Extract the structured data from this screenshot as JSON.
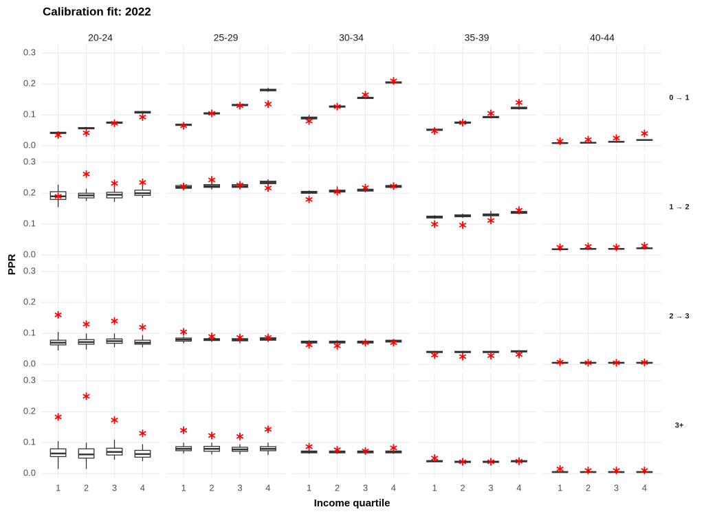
{
  "chart_data": {
    "type": "boxplot",
    "title": "Calibration fit: 2022",
    "xlabel": "Income quartile",
    "ylabel": "PPR",
    "categories": [
      "1",
      "2",
      "3",
      "4"
    ],
    "columns": [
      "20-24",
      "25-29",
      "30-34",
      "35-39",
      "40-44"
    ],
    "rows": [
      "0 → 1",
      "1 → 2",
      "2 → 3",
      "3+"
    ],
    "ylim": [
      -0.015,
      0.325
    ],
    "yticks": [
      {
        "value": 0,
        "label": "0.0"
      },
      0.1,
      0.2,
      0.3
    ],
    "grid": true,
    "box_color": "#333333",
    "box_fill": "#ffffff",
    "observed_color": "#ff0000",
    "panels": [
      [
        {
          "boxes": [
            [
              0.038,
              0.04,
              0.042,
              0.044,
              0.046
            ],
            [
              0.053,
              0.055,
              0.057,
              0.059,
              0.061
            ],
            [
              0.071,
              0.073,
              0.075,
              0.077,
              0.079
            ],
            [
              0.103,
              0.106,
              0.108,
              0.111,
              0.113
            ]
          ],
          "observed": [
            0.035,
            0.042,
            0.073,
            0.093
          ]
        },
        {
          "boxes": [
            [
              0.064,
              0.066,
              0.068,
              0.07,
              0.072
            ],
            [
              0.101,
              0.103,
              0.105,
              0.107,
              0.109
            ],
            [
              0.128,
              0.13,
              0.132,
              0.134,
              0.136
            ],
            [
              0.175,
              0.178,
              0.18,
              0.183,
              0.188
            ]
          ],
          "observed": [
            0.065,
            0.105,
            0.13,
            0.135
          ]
        },
        {
          "boxes": [
            [
              0.08,
              0.087,
              0.09,
              0.093,
              0.1
            ],
            [
              0.123,
              0.125,
              0.127,
              0.129,
              0.131
            ],
            [
              0.151,
              0.153,
              0.155,
              0.157,
              0.159
            ],
            [
              0.201,
              0.203,
              0.205,
              0.207,
              0.209
            ]
          ],
          "observed": [
            0.08,
            0.127,
            0.165,
            0.21
          ]
        },
        {
          "boxes": [
            [
              0.048,
              0.05,
              0.052,
              0.054,
              0.056
            ],
            [
              0.071,
              0.073,
              0.075,
              0.077,
              0.079
            ],
            [
              0.089,
              0.091,
              0.093,
              0.095,
              0.097
            ],
            [
              0.117,
              0.12,
              0.122,
              0.125,
              0.127
            ]
          ],
          "observed": [
            0.048,
            0.075,
            0.105,
            0.14
          ]
        },
        {
          "boxes": [
            [
              0.006,
              0.008,
              0.009,
              0.01,
              0.012
            ],
            [
              0.007,
              0.009,
              0.01,
              0.011,
              0.013
            ],
            [
              0.01,
              0.012,
              0.013,
              0.014,
              0.016
            ],
            [
              0.016,
              0.018,
              0.019,
              0.02,
              0.022
            ]
          ],
          "observed": [
            0.015,
            0.02,
            0.025,
            0.04
          ]
        }
      ],
      [
        {
          "boxes": [
            [
              0.155,
              0.18,
              0.19,
              0.205,
              0.228
            ],
            [
              0.175,
              0.185,
              0.193,
              0.2,
              0.215
            ],
            [
              0.172,
              0.185,
              0.195,
              0.203,
              0.22
            ],
            [
              0.185,
              0.193,
              0.2,
              0.21,
              0.225
            ]
          ],
          "observed": [
            0.19,
            0.262,
            0.232,
            0.235
          ]
        },
        {
          "boxes": [
            [
              0.21,
              0.216,
              0.22,
              0.225,
              0.23
            ],
            [
              0.212,
              0.219,
              0.223,
              0.228,
              0.233
            ],
            [
              0.212,
              0.219,
              0.223,
              0.228,
              0.233
            ],
            [
              0.225,
              0.231,
              0.235,
              0.239,
              0.245
            ]
          ],
          "observed": [
            0.222,
            0.243,
            0.227,
            0.217
          ]
        },
        {
          "boxes": [
            [
              0.197,
              0.2,
              0.203,
              0.206,
              0.209
            ],
            [
              0.2,
              0.204,
              0.207,
              0.21,
              0.222
            ],
            [
              0.203,
              0.207,
              0.21,
              0.213,
              0.217
            ],
            [
              0.216,
              0.219,
              0.222,
              0.225,
              0.228
            ]
          ],
          "observed": [
            0.18,
            0.205,
            0.218,
            0.223
          ]
        },
        {
          "boxes": [
            [
              0.117,
              0.12,
              0.123,
              0.126,
              0.129
            ],
            [
              0.12,
              0.124,
              0.127,
              0.13,
              0.134
            ],
            [
              0.122,
              0.127,
              0.13,
              0.133,
              0.143
            ],
            [
              0.132,
              0.135,
              0.138,
              0.141,
              0.144
            ]
          ],
          "observed": [
            0.1,
            0.097,
            0.112,
            0.145
          ]
        },
        {
          "boxes": [
            [
              0.016,
              0.018,
              0.019,
              0.02,
              0.022
            ],
            [
              0.017,
              0.019,
              0.02,
              0.021,
              0.023
            ],
            [
              0.017,
              0.019,
              0.02,
              0.021,
              0.023
            ],
            [
              0.019,
              0.021,
              0.022,
              0.023,
              0.025
            ]
          ],
          "observed": [
            0.025,
            0.028,
            0.025,
            0.03
          ]
        }
      ],
      [
        {
          "boxes": [
            [
              0.045,
              0.063,
              0.07,
              0.078,
              0.105
            ],
            [
              0.048,
              0.065,
              0.072,
              0.08,
              0.1
            ],
            [
              0.055,
              0.068,
              0.075,
              0.082,
              0.1
            ],
            [
              0.055,
              0.065,
              0.07,
              0.078,
              0.095
            ]
          ],
          "observed": [
            0.16,
            0.13,
            0.14,
            0.12
          ]
        },
        {
          "boxes": [
            [
              0.068,
              0.075,
              0.08,
              0.085,
              0.09
            ],
            [
              0.072,
              0.077,
              0.08,
              0.083,
              0.088
            ],
            [
              0.068,
              0.076,
              0.08,
              0.083,
              0.088
            ],
            [
              0.072,
              0.078,
              0.082,
              0.086,
              0.09
            ]
          ],
          "observed": [
            0.105,
            0.09,
            0.087,
            0.087
          ]
        },
        {
          "boxes": [
            [
              0.066,
              0.069,
              0.072,
              0.075,
              0.078
            ],
            [
              0.066,
              0.069,
              0.072,
              0.075,
              0.078
            ],
            [
              0.066,
              0.069,
              0.072,
              0.075,
              0.078
            ],
            [
              0.069,
              0.072,
              0.075,
              0.078,
              0.081
            ]
          ],
          "observed": [
            0.063,
            0.06,
            0.07,
            0.07
          ]
        },
        {
          "boxes": [
            [
              0.036,
              0.038,
              0.04,
              0.042,
              0.044
            ],
            [
              0.036,
              0.038,
              0.04,
              0.042,
              0.044
            ],
            [
              0.036,
              0.038,
              0.04,
              0.042,
              0.044
            ],
            [
              0.038,
              0.04,
              0.042,
              0.044,
              0.046
            ]
          ],
          "observed": [
            0.03,
            0.025,
            0.028,
            0.032
          ]
        },
        {
          "boxes": [
            [
              0.002,
              0.004,
              0.005,
              0.006,
              0.008
            ],
            [
              0.002,
              0.004,
              0.005,
              0.006,
              0.008
            ],
            [
              0.002,
              0.004,
              0.005,
              0.006,
              0.008
            ],
            [
              0.002,
              0.004,
              0.005,
              0.006,
              0.008
            ]
          ],
          "observed": [
            0.007,
            0.005,
            0.005,
            0.006
          ]
        }
      ],
      [
        {
          "boxes": [
            [
              0.015,
              0.055,
              0.065,
              0.08,
              0.105
            ],
            [
              0.015,
              0.05,
              0.062,
              0.08,
              0.1
            ],
            [
              0.045,
              0.06,
              0.07,
              0.082,
              0.11
            ],
            [
              0.04,
              0.053,
              0.063,
              0.075,
              0.095
            ]
          ],
          "observed": [
            0.183,
            0.25,
            0.173,
            0.13
          ]
        },
        {
          "boxes": [
            [
              0.065,
              0.074,
              0.08,
              0.087,
              0.1
            ],
            [
              0.062,
              0.072,
              0.08,
              0.088,
              0.1
            ],
            [
              0.062,
              0.072,
              0.078,
              0.085,
              0.095
            ],
            [
              0.06,
              0.074,
              0.08,
              0.087,
              0.1
            ]
          ],
          "observed": [
            0.14,
            0.123,
            0.12,
            0.143
          ]
        },
        {
          "boxes": [
            [
              0.064,
              0.067,
              0.07,
              0.073,
              0.076
            ],
            [
              0.064,
              0.067,
              0.07,
              0.073,
              0.076
            ],
            [
              0.064,
              0.067,
              0.07,
              0.073,
              0.076
            ],
            [
              0.064,
              0.067,
              0.07,
              0.073,
              0.076
            ]
          ],
          "observed": [
            0.087,
            0.077,
            0.073,
            0.083
          ]
        },
        {
          "boxes": [
            [
              0.036,
              0.038,
              0.04,
              0.042,
              0.044
            ],
            [
              0.034,
              0.036,
              0.038,
              0.04,
              0.042
            ],
            [
              0.034,
              0.036,
              0.038,
              0.04,
              0.042
            ],
            [
              0.036,
              0.038,
              0.04,
              0.042,
              0.044
            ]
          ],
          "observed": [
            0.05,
            0.038,
            0.038,
            0.04
          ]
        },
        {
          "boxes": [
            [
              0.002,
              0.004,
              0.005,
              0.006,
              0.008
            ],
            [
              0.002,
              0.004,
              0.005,
              0.006,
              0.008
            ],
            [
              0.002,
              0.004,
              0.005,
              0.006,
              0.008
            ],
            [
              0.002,
              0.004,
              0.005,
              0.006,
              0.008
            ]
          ],
          "observed": [
            0.015,
            0.01,
            0.01,
            0.01
          ]
        }
      ]
    ]
  }
}
